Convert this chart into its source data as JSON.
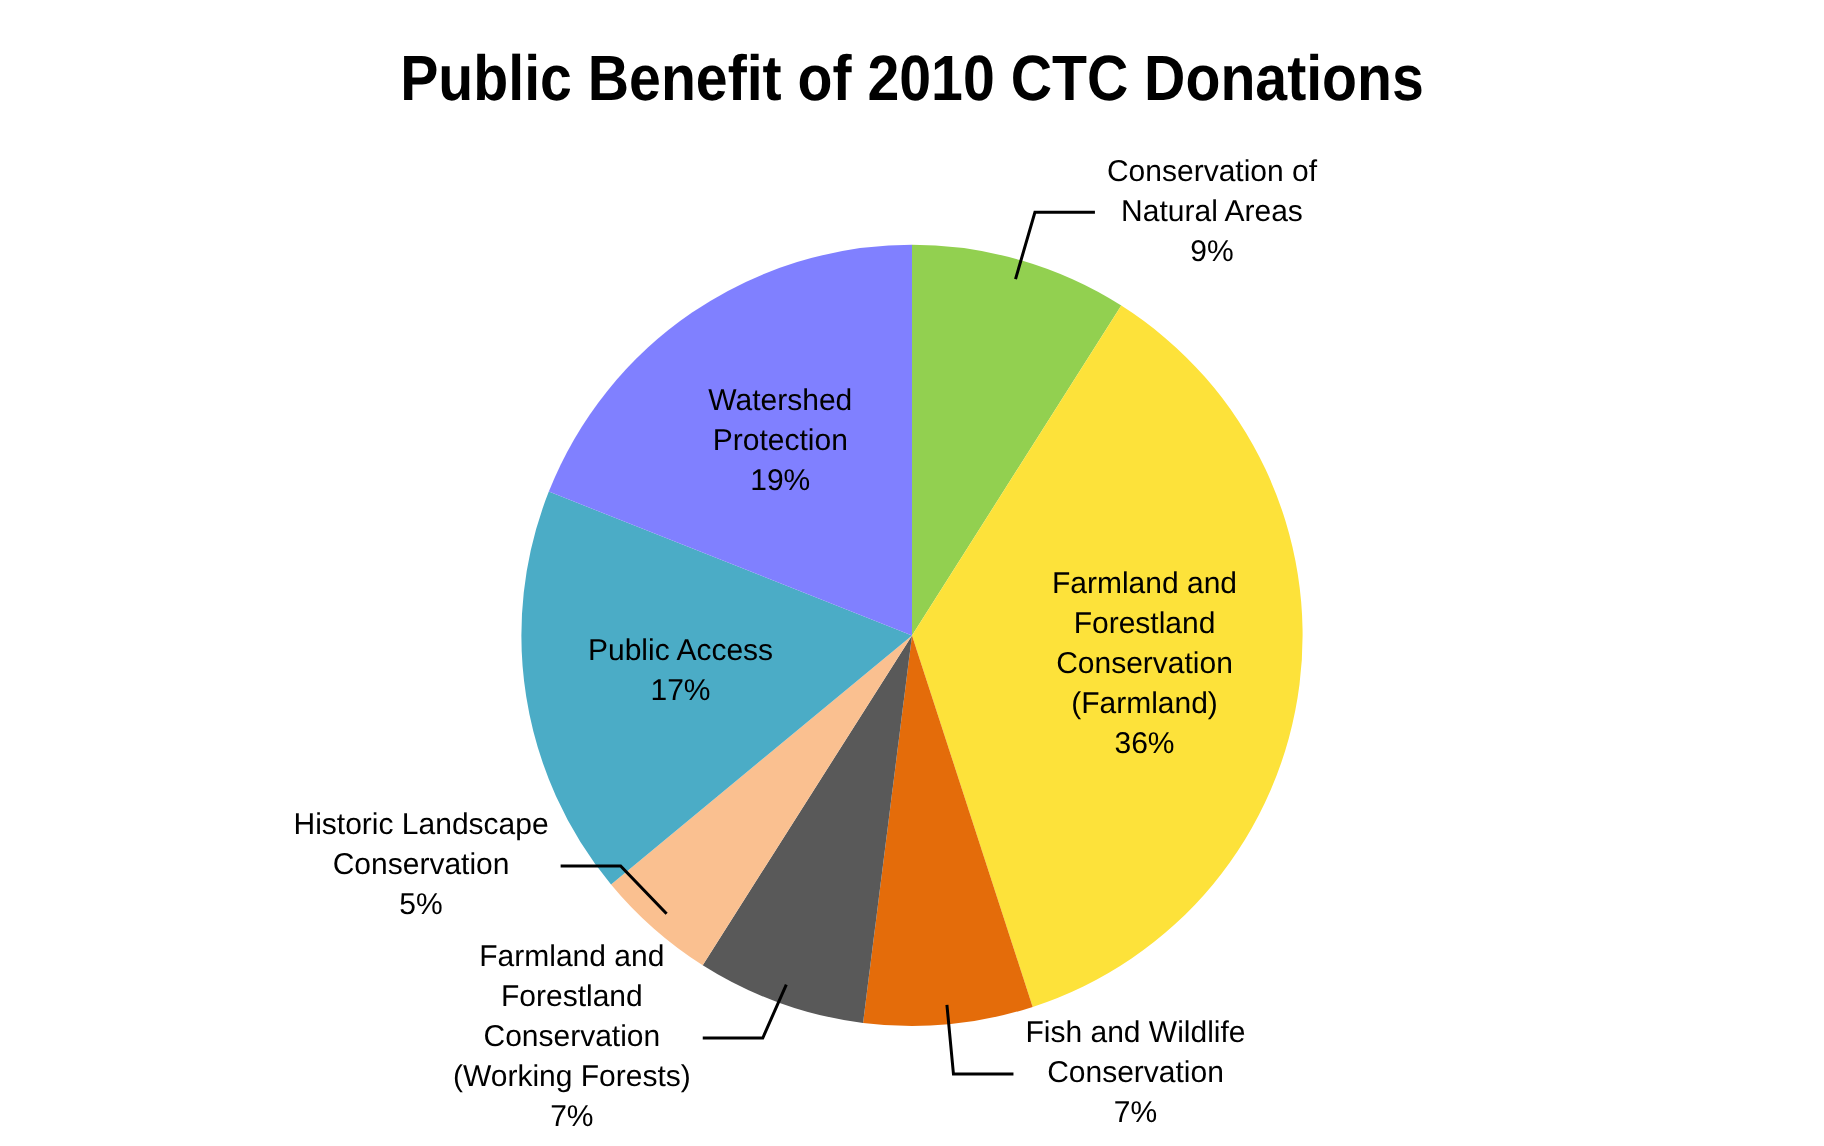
{
  "chart_data": {
    "type": "pie",
    "title": "Public Benefit of 2010 CTC Donations",
    "categories": [
      "Conservation of Natural Areas",
      "Farmland and Forestland Conservation (Farmland)",
      "Fish and Wildlife Conservation",
      "Farmland and Forestland Conservation (Working Forests)",
      "Historic Landscape Conservation",
      "Public Access",
      "Watershed Protection"
    ],
    "values": [
      9,
      36,
      7,
      7,
      5,
      17,
      19
    ],
    "colors": [
      "#92d050",
      "#fde23a",
      "#e46c0a",
      "#595959",
      "#fac090",
      "#4bacc6",
      "#8080ff"
    ],
    "value_labels": [
      "9%",
      "36%",
      "7%",
      "7%",
      "5%",
      "17%",
      "19%"
    ],
    "legend": false
  }
}
